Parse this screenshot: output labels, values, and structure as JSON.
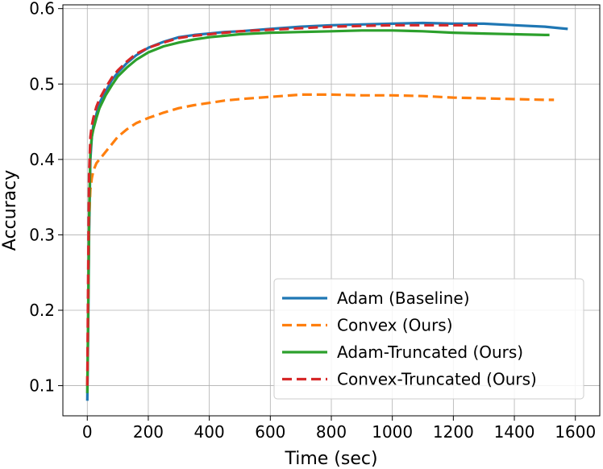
{
  "chart_data": {
    "type": "line",
    "xlabel": "Time (sec)",
    "ylabel": "Accuracy",
    "xlim": [
      -80,
      1680
    ],
    "ylim": [
      0.06,
      0.605
    ],
    "xticks": [
      0,
      200,
      400,
      600,
      800,
      1000,
      1200,
      1400,
      1600
    ],
    "yticks": [
      0.1,
      0.2,
      0.3,
      0.4,
      0.5,
      0.6
    ],
    "grid": true,
    "legend_position": "lower-right",
    "series": [
      {
        "name": "Adam (Baseline)",
        "color": "#1f77b4",
        "dash": "solid",
        "x": [
          0,
          3,
          6,
          10,
          15,
          20,
          30,
          40,
          60,
          80,
          100,
          130,
          160,
          200,
          250,
          300,
          350,
          400,
          450,
          500,
          600,
          700,
          800,
          900,
          1000,
          1100,
          1200,
          1300,
          1400,
          1500,
          1550,
          1575
        ],
        "y": [
          0.08,
          0.18,
          0.3,
          0.4,
          0.43,
          0.445,
          0.46,
          0.475,
          0.49,
          0.505,
          0.515,
          0.528,
          0.538,
          0.548,
          0.556,
          0.562,
          0.565,
          0.567,
          0.569,
          0.57,
          0.573,
          0.576,
          0.578,
          0.579,
          0.58,
          0.581,
          0.58,
          0.58,
          0.578,
          0.576,
          0.574,
          0.573
        ]
      },
      {
        "name": "Convex (Ours)",
        "color": "#ff7f0e",
        "dash": "dashed",
        "x": [
          0,
          3,
          6,
          10,
          15,
          20,
          30,
          50,
          70,
          100,
          130,
          160,
          200,
          250,
          300,
          350,
          400,
          450,
          500,
          600,
          700,
          800,
          900,
          1000,
          1100,
          1200,
          1300,
          1400,
          1500,
          1530
        ],
        "y": [
          0.1,
          0.2,
          0.32,
          0.36,
          0.375,
          0.385,
          0.395,
          0.405,
          0.415,
          0.43,
          0.44,
          0.448,
          0.455,
          0.462,
          0.468,
          0.472,
          0.475,
          0.478,
          0.48,
          0.483,
          0.486,
          0.486,
          0.485,
          0.485,
          0.484,
          0.482,
          0.481,
          0.48,
          0.479,
          0.479
        ]
      },
      {
        "name": "Adam-Truncated (Ours)",
        "color": "#2ca02c",
        "dash": "solid",
        "x": [
          0,
          3,
          6,
          10,
          15,
          20,
          30,
          40,
          60,
          80,
          100,
          130,
          160,
          200,
          250,
          300,
          350,
          400,
          450,
          500,
          600,
          700,
          800,
          900,
          1000,
          1100,
          1200,
          1300,
          1400,
          1500,
          1515
        ],
        "y": [
          0.09,
          0.2,
          0.32,
          0.41,
          0.43,
          0.44,
          0.455,
          0.468,
          0.485,
          0.498,
          0.51,
          0.522,
          0.532,
          0.542,
          0.55,
          0.555,
          0.559,
          0.562,
          0.564,
          0.566,
          0.568,
          0.569,
          0.57,
          0.571,
          0.571,
          0.57,
          0.568,
          0.567,
          0.566,
          0.565,
          0.565
        ]
      },
      {
        "name": "Convex-Truncated (Ours)",
        "color": "#d62728",
        "dash": "dashed",
        "x": [
          0,
          3,
          6,
          10,
          15,
          20,
          30,
          40,
          60,
          80,
          100,
          130,
          160,
          200,
          250,
          300,
          350,
          400,
          450,
          500,
          600,
          700,
          800,
          900,
          1000,
          1100,
          1200,
          1280
        ],
        "y": [
          0.1,
          0.25,
          0.38,
          0.43,
          0.445,
          0.455,
          0.47,
          0.48,
          0.495,
          0.508,
          0.518,
          0.53,
          0.54,
          0.548,
          0.555,
          0.561,
          0.564,
          0.566,
          0.568,
          0.57,
          0.572,
          0.574,
          0.576,
          0.577,
          0.578,
          0.578,
          0.578,
          0.578
        ]
      }
    ]
  }
}
